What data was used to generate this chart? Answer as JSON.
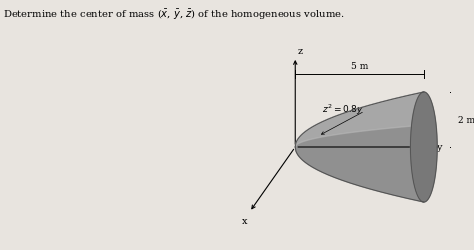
{
  "title_text": "Determine the center of mass ($\\bar{x}$, $\\bar{y}$, $\\bar{z}$) of the homogeneous volume.",
  "background_color": "#e8e4df",
  "label_5m": "5 m",
  "label_eq": "$z^2 = 0.8y$",
  "label_2m": "2 m",
  "label_x": "x",
  "label_y": "y",
  "label_z": "z",
  "body_color": "#909090",
  "body_color_light": "#b8b8b8",
  "face_color": "#787878",
  "face_color_dark": "#606060",
  "outline_color": "#505050"
}
